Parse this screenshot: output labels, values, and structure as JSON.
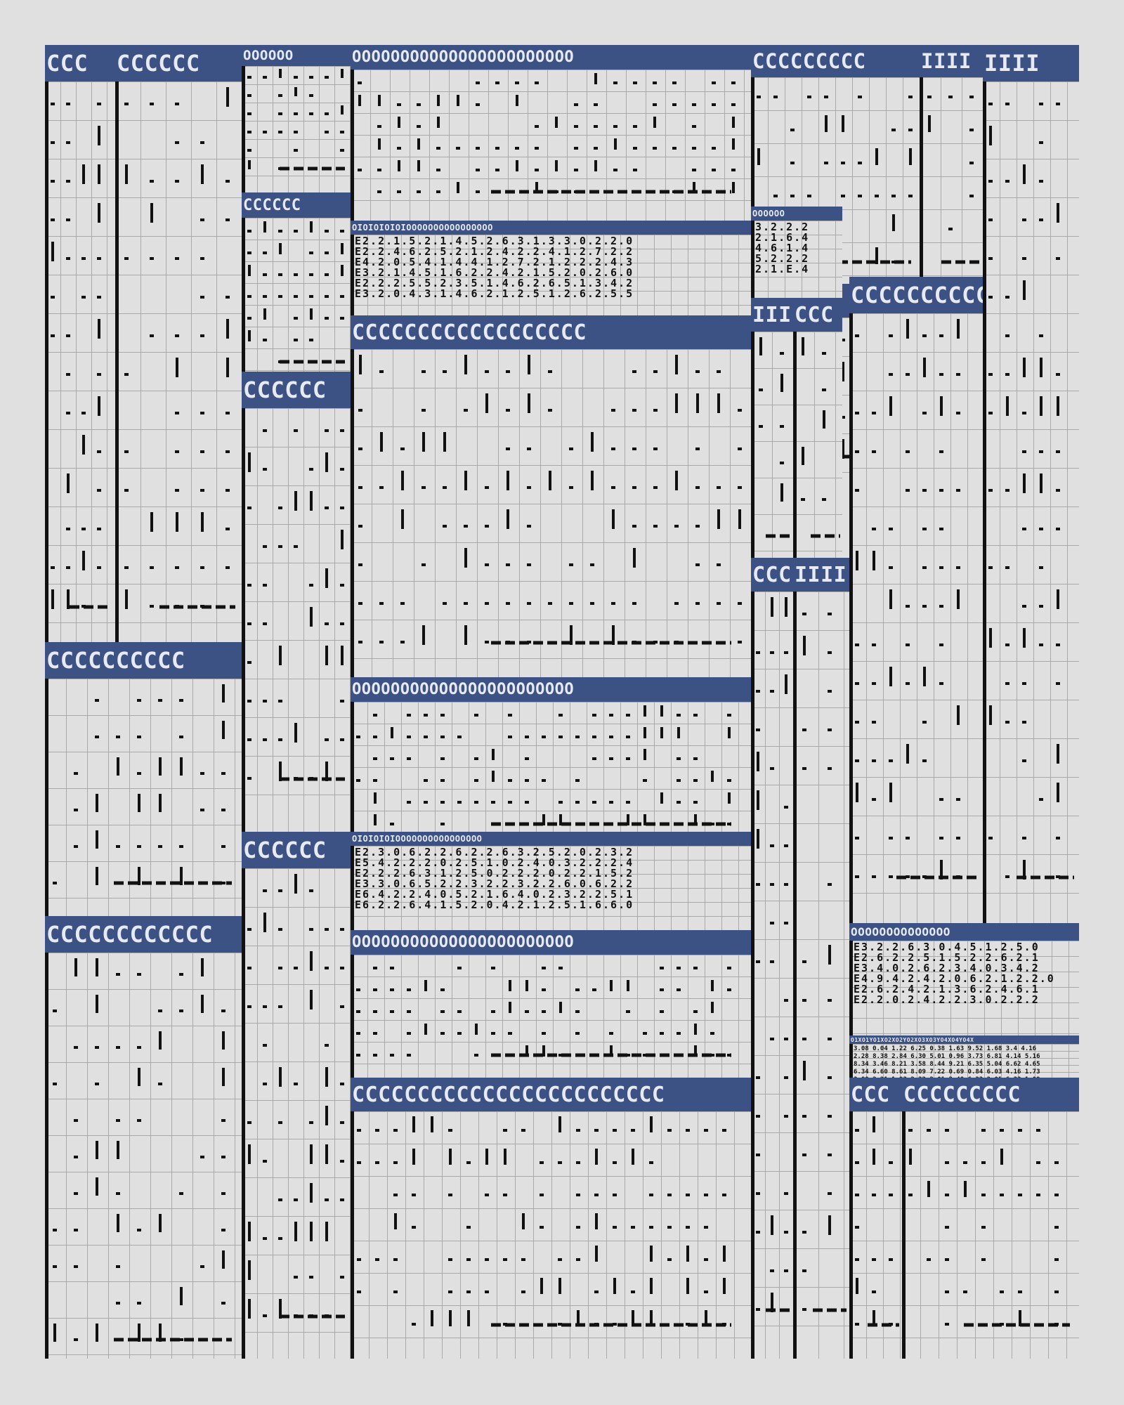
{
  "sheet": {
    "header_glyph": "C",
    "zero_glyph": "O",
    "bar_glyph": "I"
  },
  "panels": [
    {
      "id": "p1",
      "kind": "cells",
      "label": "CCC",
      "rows": 14
    },
    {
      "id": "p2",
      "kind": "cells",
      "label": "CCCCCC",
      "rows": 14
    },
    {
      "id": "p3",
      "kind": "cells",
      "label": "OOOOOO",
      "rows": 7
    },
    {
      "id": "p4",
      "kind": "cells",
      "label": "OOOOOOOOOOOOOOOOOOOOOOO",
      "rows": 7
    },
    {
      "id": "p5",
      "kind": "cells",
      "label": "CCCCCC",
      "rows": 7
    },
    {
      "id": "p6",
      "kind": "cells",
      "label": "CCCCCCCCC",
      "rows": 6
    },
    {
      "id": "p7",
      "kind": "cells",
      "label": "IIII",
      "rows": 6
    },
    {
      "id": "p8",
      "kind": "cells",
      "label": "CCCCCC",
      "rows": 4
    },
    {
      "id": "p9",
      "kind": "numbers",
      "label": "OIOIOIOIOIOOOOOOOOOOOOOOOO",
      "lines": [
        "E2.2.1.5.2.1.4.5.2.6.3.1.3.3.0.2.2.0",
        "E2.2.4.6.2.5.2.1.2.4.2.2.4.1.2.7.2.2",
        "E4.2.0.5.4.1.4.4.1.2.7.2.1.2.2.2.4.3",
        "E3.2.1.4.5.1.6.2.2.4.2.1.5.2.0.2.6.0",
        "E2.2.2.5.5.2.3.5.1.4.6.2.6.5.1.3.4.2",
        "E3.2.0.4.3.1.4.6.2.1.2.5.1.2.6.2.5.5"
      ]
    },
    {
      "id": "p10",
      "kind": "numbers",
      "label": "OOOOOO",
      "lines": [
        "3.2.2.2",
        "2.1.6.4",
        "4.6.1.4",
        "5.2.2.2",
        "2.1.E.4"
      ]
    },
    {
      "id": "p11",
      "kind": "cells",
      "label": "CCCCCCCCCCCCCCCCCC",
      "rows": 9
    },
    {
      "id": "p12",
      "kind": "cells",
      "label": "IIII",
      "rows": 6
    },
    {
      "id": "p13",
      "kind": "cells",
      "label": "CCC",
      "rows": 6
    },
    {
      "id": "p14",
      "kind": "cells",
      "label": "CCCCCCCCCC",
      "rows": 7
    },
    {
      "id": "p15",
      "kind": "cells",
      "label": "CCCCCCCCCCCC",
      "rows": 8
    },
    {
      "id": "p16",
      "kind": "cells",
      "label": "CCCCCC",
      "rows": 11
    },
    {
      "id": "p17",
      "kind": "cells",
      "label": "CCCCCC",
      "rows": 6
    },
    {
      "id": "p18",
      "kind": "cells",
      "label": "OOOOOOOOOOOOOOOOOOOOOOO",
      "rows": 4
    },
    {
      "id": "p19",
      "kind": "numbers",
      "label": "OIOIOIOIOOOOOOOOOOOOOOOO",
      "lines": [
        "E2.3.0.6.2.2.6.2.2.6.3.2.5.2.0.2.3.2",
        "E5.4.2.2.2.0.2.5.1.0.2.4.0.3.2.2.2.4",
        "E2.2.2.6.3.1.2.5.0.2.2.2.0.2.2.1.5.2",
        "E3.3.0.6.5.2.2.3.2.2.3.2.2.6.0.6.2.2",
        "E6.4.2.2.4.0.5.2.1.6.4.0.2.3.2.2.5.1",
        "E6.2.2.6.4.1.5.2.0.4.2.1.2.5.1.6.6.0"
      ]
    },
    {
      "id": "p20",
      "kind": "cells",
      "label": "CCC",
      "rows": 14
    },
    {
      "id": "p21",
      "kind": "cells",
      "label": "OOOOOOOOOOOOOOOOOOOOOOO",
      "rows": 4
    },
    {
      "id": "p22",
      "kind": "cells",
      "label": "CCCCCCCCCCCCCCCCCCCCCCCC",
      "rows": 7
    },
    {
      "id": "p23",
      "kind": "numbers",
      "label": "OOOOOOOOOOOOOO",
      "lines": [
        "E3.2.2.6.3.0.4.5.1.2.5.0",
        "E2.6.2.2.5.1.5.2.2.6.2.1",
        "E3.4.0.2.6.2.3.4.0.3.4.2",
        "E4.9.4.2.4.2.0.6.2.1.2.2.0",
        "E2.6.2.4.2.1.3.6.2.4.6.1",
        "E2.2.0.2.4.2.2.3.0.2.2.2"
      ]
    },
    {
      "id": "p24",
      "kind": "numbers",
      "label": "O1XO1YO1XO2XO2YO2XO3XO3YO4XO4YO4X",
      "lines": [
        "3.08 0.04 1.22 6.25 0.38 1.63 9.52 1.68 3.4 4.16",
        "2.28 8.38 2.84 6.30 5.01 0.96 3.73 6.81 4.14 5.16",
        "8.34 3.46 8.21 3.58 8.44 9.21 6.35 5.04 6.62 4.65",
        "6.34 6.60 8.61 8.09 7.22 0.69 0.84 6.03 4.16 1.73",
        "3.88 2.21 1.93 2.22 2.01 2.48 6.23 2.01 6.33 1.09"
      ]
    },
    {
      "id": "p25",
      "kind": "cells",
      "label": "CCC",
      "rows": 6
    },
    {
      "id": "p26",
      "kind": "cells",
      "label": "CCCCCCCCC",
      "rows": 6
    },
    {
      "id": "p27",
      "kind": "cells",
      "label": "IIII",
      "rows": 25
    },
    {
      "id": "p28",
      "kind": "cells",
      "label": "IIII",
      "rows": 30
    },
    {
      "id": "p29",
      "kind": "cells",
      "label": "CCCCCCCCCC",
      "rows": 5
    }
  ]
}
